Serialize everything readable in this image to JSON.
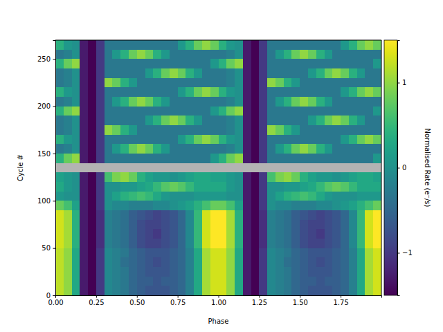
{
  "chart_data": {
    "type": "heatmap",
    "x_label": "Phase",
    "y_label": "Cycle #",
    "xlim": [
      0,
      2
    ],
    "ylim": [
      0,
      270
    ],
    "xticks": [
      {
        "value": 0,
        "label": "0.00"
      },
      {
        "value": 0.25,
        "label": "0.25"
      },
      {
        "value": 0.5,
        "label": "0.50"
      },
      {
        "value": 0.75,
        "label": "0.75"
      },
      {
        "value": 1,
        "label": "1.00"
      },
      {
        "value": 1.25,
        "label": "1.25"
      },
      {
        "value": 1.5,
        "label": "1.50"
      },
      {
        "value": 1.75,
        "label": "1.75"
      }
    ],
    "yticks": [
      0,
      50,
      100,
      150,
      200,
      250
    ],
    "x_bins": [
      0,
      0.05,
      0.1,
      0.15,
      0.2,
      0.25,
      0.3,
      0.35,
      0.4,
      0.45,
      0.5,
      0.55,
      0.6,
      0.65,
      0.7,
      0.75,
      0.8,
      0.85,
      0.9,
      0.95,
      1,
      1.05,
      1.1,
      1.15,
      1.2,
      1.25,
      1.3,
      1.35,
      1.4,
      1.45,
      1.5,
      1.55,
      1.6,
      1.65,
      1.7,
      1.75,
      1.8,
      1.85,
      1.9,
      1.95,
      2
    ],
    "y_bins": [
      0,
      10,
      20,
      30,
      40,
      50,
      60,
      70,
      80,
      90,
      100,
      110,
      120,
      130,
      140,
      150,
      160,
      170,
      180,
      190,
      200,
      210,
      220,
      230,
      240,
      250,
      260,
      270
    ],
    "cells": [
      [
        1.2,
        1.0,
        0.3,
        -1.3,
        -1.5,
        -1.0,
        -0.1,
        -0.2,
        -0.3,
        -0.5,
        -0.6,
        -0.7,
        -0.7,
        -0.7,
        -0.6,
        -0.5,
        -0.2,
        0.3,
        1.1,
        1.3,
        1.3,
        1.0,
        0.3,
        -1.3,
        -1.5,
        -1.0,
        -0.1,
        -0.2,
        -0.3,
        -0.5,
        -0.6,
        -0.7,
        -0.7,
        -0.7,
        -0.6,
        -0.5,
        -0.2,
        0.3,
        1.1,
        1.3
      ],
      [
        1.2,
        1.0,
        0.3,
        -1.3,
        -1.5,
        -1.0,
        -0.1,
        -0.2,
        -0.3,
        -0.5,
        -0.6,
        -0.6,
        -0.7,
        -0.6,
        -0.6,
        -0.5,
        -0.2,
        0.3,
        1.1,
        1.3,
        1.3,
        1.0,
        0.3,
        -1.3,
        -1.5,
        -1.0,
        -0.1,
        -0.2,
        -0.3,
        -0.5,
        -0.6,
        -0.6,
        -0.7,
        -0.6,
        -0.6,
        -0.5,
        -0.2,
        0.3,
        1.1,
        1.3
      ],
      [
        1.2,
        1.0,
        0.3,
        -1.3,
        -1.5,
        -1.0,
        -0.1,
        -0.2,
        -0.3,
        -0.5,
        -0.6,
        -0.7,
        -0.7,
        -0.7,
        -0.6,
        -0.5,
        -0.2,
        0.3,
        1.1,
        1.3,
        1.3,
        1.0,
        0.3,
        -1.3,
        -1.5,
        -1.0,
        -0.1,
        -0.2,
        -0.3,
        -0.5,
        -0.6,
        -0.7,
        -0.7,
        -0.7,
        -0.6,
        -0.5,
        -0.2,
        0.3,
        1.1,
        1.3
      ],
      [
        1.2,
        1.0,
        0.3,
        -1.3,
        -1.5,
        -1.0,
        -0.1,
        -0.2,
        -0.4,
        -0.5,
        -0.6,
        -0.7,
        -0.8,
        -0.7,
        -0.6,
        -0.5,
        -0.2,
        0.3,
        1.1,
        1.3,
        1.3,
        1.0,
        0.3,
        -1.3,
        -1.5,
        -1.0,
        -0.1,
        -0.2,
        -0.4,
        -0.5,
        -0.6,
        -0.7,
        -0.8,
        -0.7,
        -0.6,
        -0.5,
        -0.2,
        0.3,
        1.1,
        1.3
      ],
      [
        1.2,
        1.0,
        0.3,
        -1.3,
        -1.5,
        -1.0,
        -0.1,
        -0.2,
        -0.3,
        -0.5,
        -0.6,
        -0.7,
        -0.7,
        -0.7,
        -0.6,
        -0.5,
        -0.2,
        0.3,
        1.1,
        1.3,
        1.3,
        1.0,
        0.3,
        -1.3,
        -1.5,
        -1.0,
        -0.1,
        -0.2,
        -0.3,
        -0.5,
        -0.6,
        -0.7,
        -0.7,
        -0.7,
        -0.6,
        -0.5,
        -0.2,
        0.3,
        1.1,
        1.3
      ],
      [
        1.3,
        1.1,
        0.4,
        -1.3,
        -1.5,
        -1.1,
        -0.2,
        -0.3,
        -0.4,
        -0.6,
        -0.8,
        -0.9,
        -0.9,
        -0.8,
        -0.7,
        -0.5,
        -0.1,
        0.5,
        1.3,
        1.5,
        1.5,
        1.1,
        0.4,
        -1.3,
        -1.5,
        -1.1,
        -0.2,
        -0.3,
        -0.4,
        -0.6,
        -0.8,
        -0.9,
        -0.9,
        -0.8,
        -0.7,
        -0.5,
        -0.1,
        0.5,
        1.3,
        1.5
      ],
      [
        1.3,
        1.1,
        0.4,
        -1.3,
        -1.5,
        -1.1,
        -0.2,
        -0.3,
        -0.4,
        -0.6,
        -0.8,
        -0.9,
        -1.0,
        -0.8,
        -0.7,
        -0.5,
        -0.1,
        0.5,
        1.3,
        1.5,
        1.5,
        1.1,
        0.4,
        -1.3,
        -1.5,
        -1.1,
        -0.2,
        -0.3,
        -0.4,
        -0.6,
        -0.8,
        -0.9,
        -1.0,
        -0.8,
        -0.7,
        -0.5,
        -0.1,
        0.5,
        1.3,
        1.5
      ],
      [
        1.3,
        1.1,
        0.4,
        -1.3,
        -1.5,
        -1.1,
        -0.2,
        -0.3,
        -0.4,
        -0.6,
        -0.8,
        -0.9,
        -0.9,
        -0.8,
        -0.7,
        -0.5,
        -0.1,
        0.5,
        1.3,
        1.5,
        1.5,
        1.1,
        0.4,
        -1.3,
        -1.5,
        -1.1,
        -0.2,
        -0.3,
        -0.4,
        -0.6,
        -0.8,
        -0.9,
        -0.9,
        -0.8,
        -0.7,
        -0.5,
        -0.1,
        0.5,
        1.3,
        1.5
      ],
      [
        1.3,
        1.1,
        0.4,
        -1.3,
        -1.5,
        -1.1,
        -0.2,
        -0.3,
        -0.4,
        -0.6,
        -0.7,
        -0.8,
        -0.9,
        -0.8,
        -0.7,
        -0.5,
        -0.1,
        0.5,
        1.3,
        1.5,
        1.5,
        1.1,
        0.4,
        -1.3,
        -1.5,
        -1.1,
        -0.2,
        -0.3,
        -0.4,
        -0.6,
        -0.7,
        -0.8,
        -0.9,
        -0.8,
        -0.7,
        -0.5,
        -0.1,
        0.5,
        1.3,
        1.5
      ],
      [
        0.8,
        0.6,
        0.2,
        -1.3,
        -1.5,
        -1.0,
        0.0,
        -0.1,
        -0.1,
        -0.2,
        -0.2,
        -0.2,
        -0.1,
        -0.1,
        0.0,
        0.1,
        0.2,
        0.4,
        0.6,
        0.8,
        0.8,
        0.6,
        0.2,
        -1.3,
        -1.5,
        -1.0,
        0.0,
        -0.1,
        -0.1,
        -0.2,
        -0.2,
        -0.2,
        -0.1,
        -0.1,
        0.0,
        0.1,
        0.2,
        0.4,
        0.6,
        0.8
      ],
      [
        0.1,
        0.0,
        0.0,
        -1.3,
        -1.5,
        -1.0,
        0.0,
        0.2,
        0.4,
        0.5,
        0.6,
        0.5,
        0.3,
        0.1,
        0.0,
        0.0,
        0.0,
        0.1,
        0.1,
        0.1,
        0.1,
        0.0,
        0.0,
        -1.3,
        -1.5,
        -1.0,
        0.0,
        0.2,
        0.4,
        0.5,
        0.6,
        0.5,
        0.3,
        0.1,
        0.0,
        0.0,
        0.0,
        0.1,
        0.1,
        0.1
      ],
      [
        0.3,
        0.1,
        0.0,
        -1.3,
        -1.5,
        -1.0,
        0.0,
        0.0,
        0.1,
        0.1,
        0.2,
        0.3,
        0.5,
        0.7,
        0.8,
        0.7,
        0.5,
        0.3,
        0.3,
        0.3,
        0.3,
        0.1,
        0.0,
        -1.3,
        -1.5,
        -1.0,
        0.0,
        0.0,
        0.1,
        0.1,
        0.2,
        0.3,
        0.5,
        0.7,
        0.8,
        0.7,
        0.5,
        0.3,
        0.3,
        0.3
      ],
      [
        0.2,
        0.1,
        0.0,
        -1.3,
        -1.5,
        -1.0,
        0.6,
        0.9,
        1.0,
        0.8,
        0.4,
        0.2,
        0.1,
        0.1,
        0.0,
        0.1,
        0.2,
        0.3,
        0.3,
        0.2,
        0.2,
        0.1,
        0.0,
        -1.3,
        -1.5,
        -1.0,
        0.6,
        0.9,
        1.0,
        0.8,
        0.4,
        0.2,
        0.1,
        0.1,
        0.0,
        0.1,
        0.2,
        0.3,
        0.3,
        0.2
      ],
      [
        null,
        null,
        null,
        null,
        null,
        null,
        null,
        null,
        null,
        null,
        null,
        null,
        null,
        null,
        null,
        null,
        null,
        null,
        null,
        null,
        null,
        null,
        null,
        null,
        null,
        null,
        null,
        null,
        null,
        null,
        null,
        null,
        null,
        null,
        null,
        null,
        null,
        null,
        null,
        null
      ],
      [
        0.4,
        0.8,
        1.0,
        -1.3,
        -1.5,
        -1.0,
        -0.3,
        -0.3,
        -0.3,
        -0.3,
        -0.3,
        -0.3,
        -0.3,
        -0.3,
        -0.3,
        -0.3,
        -0.3,
        -0.3,
        -0.3,
        0.1,
        0.4,
        0.8,
        1.0,
        -1.3,
        -1.5,
        -1.0,
        -0.3,
        -0.3,
        -0.3,
        -0.3,
        -0.3,
        -0.3,
        -0.3,
        -0.3,
        -0.3,
        -0.3,
        -0.3,
        -0.3,
        -0.3,
        0.1
      ],
      [
        -0.3,
        -0.2,
        0.0,
        -1.3,
        -1.5,
        -1.0,
        -0.3,
        0.1,
        0.4,
        0.8,
        1.0,
        0.8,
        0.4,
        0.1,
        -0.3,
        -0.3,
        -0.3,
        -0.3,
        -0.3,
        -0.3,
        -0.3,
        -0.2,
        0.0,
        -1.3,
        -1.5,
        -1.0,
        -0.3,
        0.1,
        0.4,
        0.8,
        1.0,
        0.8,
        0.4,
        0.1,
        -0.3,
        -0.3,
        -0.3,
        -0.3,
        -0.3,
        -0.3
      ],
      [
        0.4,
        0.1,
        0.0,
        -1.3,
        -1.5,
        -1.0,
        -0.3,
        -0.3,
        -0.3,
        -0.3,
        -0.3,
        -0.3,
        -0.3,
        -0.3,
        -0.3,
        0.1,
        0.4,
        0.8,
        1.0,
        0.8,
        0.4,
        0.1,
        0.0,
        -1.3,
        -1.5,
        -1.0,
        -0.3,
        -0.3,
        -0.3,
        -0.3,
        -0.3,
        -0.3,
        -0.3,
        -0.3,
        -0.3,
        0.1,
        0.4,
        0.8,
        1.0,
        0.8
      ],
      [
        -0.3,
        -0.2,
        0.0,
        -1.3,
        -1.5,
        -1.0,
        1.0,
        0.8,
        0.4,
        0.1,
        -0.3,
        -0.3,
        -0.3,
        -0.3,
        -0.3,
        -0.3,
        -0.3,
        -0.3,
        -0.3,
        -0.3,
        -0.3,
        -0.2,
        0.0,
        -1.3,
        -1.5,
        -1.0,
        1.0,
        0.8,
        0.4,
        0.1,
        -0.3,
        -0.3,
        -0.3,
        -0.3,
        -0.3,
        -0.3,
        -0.3,
        -0.3,
        -0.3,
        -0.3
      ],
      [
        -0.3,
        -0.2,
        0.0,
        -1.3,
        -1.5,
        -1.0,
        -0.3,
        -0.3,
        -0.3,
        -0.3,
        -0.3,
        0.1,
        0.4,
        0.8,
        1.0,
        0.8,
        0.4,
        0.1,
        -0.3,
        -0.3,
        -0.3,
        -0.2,
        0.0,
        -1.3,
        -1.5,
        -1.0,
        -0.3,
        -0.3,
        -0.3,
        -0.3,
        -0.3,
        0.1,
        0.4,
        0.8,
        1.0,
        0.8,
        0.4,
        0.1,
        -0.3,
        -0.3
      ],
      [
        0.4,
        0.8,
        1.0,
        -1.3,
        -1.5,
        -1.0,
        -0.3,
        -0.3,
        -0.3,
        -0.3,
        -0.3,
        -0.3,
        -0.3,
        -0.3,
        -0.3,
        -0.3,
        -0.3,
        -0.3,
        -0.3,
        0.1,
        0.4,
        0.8,
        1.0,
        -1.3,
        -1.5,
        -1.0,
        -0.3,
        -0.3,
        -0.3,
        -0.3,
        -0.3,
        -0.3,
        -0.3,
        -0.3,
        -0.3,
        -0.3,
        -0.3,
        -0.3,
        -0.3,
        0.1
      ],
      [
        -0.3,
        -0.2,
        0.0,
        -1.3,
        -1.5,
        -1.0,
        -0.3,
        0.1,
        0.4,
        0.8,
        1.0,
        0.8,
        0.4,
        0.1,
        -0.3,
        -0.3,
        -0.3,
        -0.3,
        -0.3,
        -0.3,
        -0.3,
        -0.2,
        0.0,
        -1.3,
        -1.5,
        -1.0,
        -0.3,
        0.1,
        0.4,
        0.8,
        1.0,
        0.8,
        0.4,
        0.1,
        -0.3,
        -0.3,
        -0.3,
        -0.3,
        -0.3,
        -0.3
      ],
      [
        0.4,
        0.1,
        0.0,
        -1.3,
        -1.5,
        -1.0,
        -0.3,
        -0.3,
        -0.3,
        -0.3,
        -0.3,
        -0.3,
        -0.3,
        -0.3,
        -0.3,
        0.1,
        0.4,
        0.8,
        1.0,
        0.8,
        0.4,
        0.1,
        0.0,
        -1.3,
        -1.5,
        -1.0,
        -0.3,
        -0.3,
        -0.3,
        -0.3,
        -0.3,
        -0.3,
        -0.3,
        -0.3,
        -0.3,
        0.1,
        0.4,
        0.8,
        1.0,
        0.8
      ],
      [
        -0.3,
        -0.2,
        0.0,
        -1.3,
        -1.5,
        -1.0,
        1.0,
        0.8,
        0.4,
        0.1,
        -0.3,
        -0.3,
        -0.3,
        -0.3,
        -0.3,
        -0.3,
        -0.3,
        -0.3,
        -0.3,
        -0.3,
        -0.3,
        -0.2,
        0.0,
        -1.3,
        -1.5,
        -1.0,
        1.0,
        0.8,
        0.4,
        0.1,
        -0.3,
        -0.3,
        -0.3,
        -0.3,
        -0.3,
        -0.3,
        -0.3,
        -0.3,
        -0.3,
        -0.3
      ],
      [
        -0.3,
        -0.2,
        0.0,
        -1.3,
        -1.5,
        -1.0,
        -0.3,
        -0.3,
        -0.3,
        -0.3,
        -0.3,
        0.1,
        0.4,
        0.8,
        1.0,
        0.8,
        0.4,
        0.1,
        -0.3,
        -0.3,
        -0.3,
        -0.2,
        0.0,
        -1.3,
        -1.5,
        -1.0,
        -0.3,
        -0.3,
        -0.3,
        -0.3,
        -0.3,
        0.1,
        0.4,
        0.8,
        1.0,
        0.8,
        0.4,
        0.1,
        -0.3,
        -0.3
      ],
      [
        0.4,
        0.8,
        1.0,
        -1.3,
        -1.5,
        -1.0,
        -0.3,
        -0.3,
        -0.3,
        -0.3,
        -0.3,
        -0.3,
        -0.3,
        -0.3,
        -0.3,
        -0.3,
        -0.3,
        -0.3,
        -0.3,
        0.1,
        0.4,
        0.8,
        1.0,
        -1.3,
        -1.5,
        -1.0,
        -0.3,
        -0.3,
        -0.3,
        -0.3,
        -0.3,
        -0.3,
        -0.3,
        -0.3,
        -0.3,
        -0.3,
        -0.3,
        -0.3,
        -0.3,
        0.1
      ],
      [
        -0.3,
        -0.2,
        0.0,
        -1.3,
        -1.5,
        -1.0,
        -0.3,
        0.1,
        0.4,
        0.8,
        1.0,
        0.8,
        0.4,
        0.1,
        -0.3,
        -0.3,
        -0.3,
        -0.3,
        -0.3,
        -0.3,
        -0.3,
        -0.2,
        0.0,
        -1.3,
        -1.5,
        -1.0,
        -0.3,
        0.1,
        0.4,
        0.8,
        1.0,
        0.8,
        0.4,
        0.1,
        -0.3,
        -0.3,
        -0.3,
        -0.3,
        -0.3,
        -0.3
      ],
      [
        0.4,
        0.1,
        0.0,
        -1.3,
        -1.5,
        -1.0,
        -0.3,
        -0.3,
        -0.3,
        -0.3,
        -0.3,
        -0.3,
        -0.3,
        -0.3,
        -0.3,
        0.1,
        0.4,
        0.8,
        1.0,
        0.8,
        0.4,
        0.1,
        0.0,
        -1.3,
        -1.5,
        -1.0,
        -0.3,
        -0.3,
        -0.3,
        -0.3,
        -0.3,
        -0.3,
        -0.3,
        -0.3,
        -0.3,
        0.1,
        0.4,
        0.8,
        1.0,
        0.8
      ]
    ],
    "colorbar": {
      "label": "Normalised Rate (e⁻/s)",
      "range": [
        -1.5,
        1.5
      ],
      "ticks": [
        {
          "value": -1,
          "label": "−1"
        },
        0,
        1
      ]
    }
  }
}
